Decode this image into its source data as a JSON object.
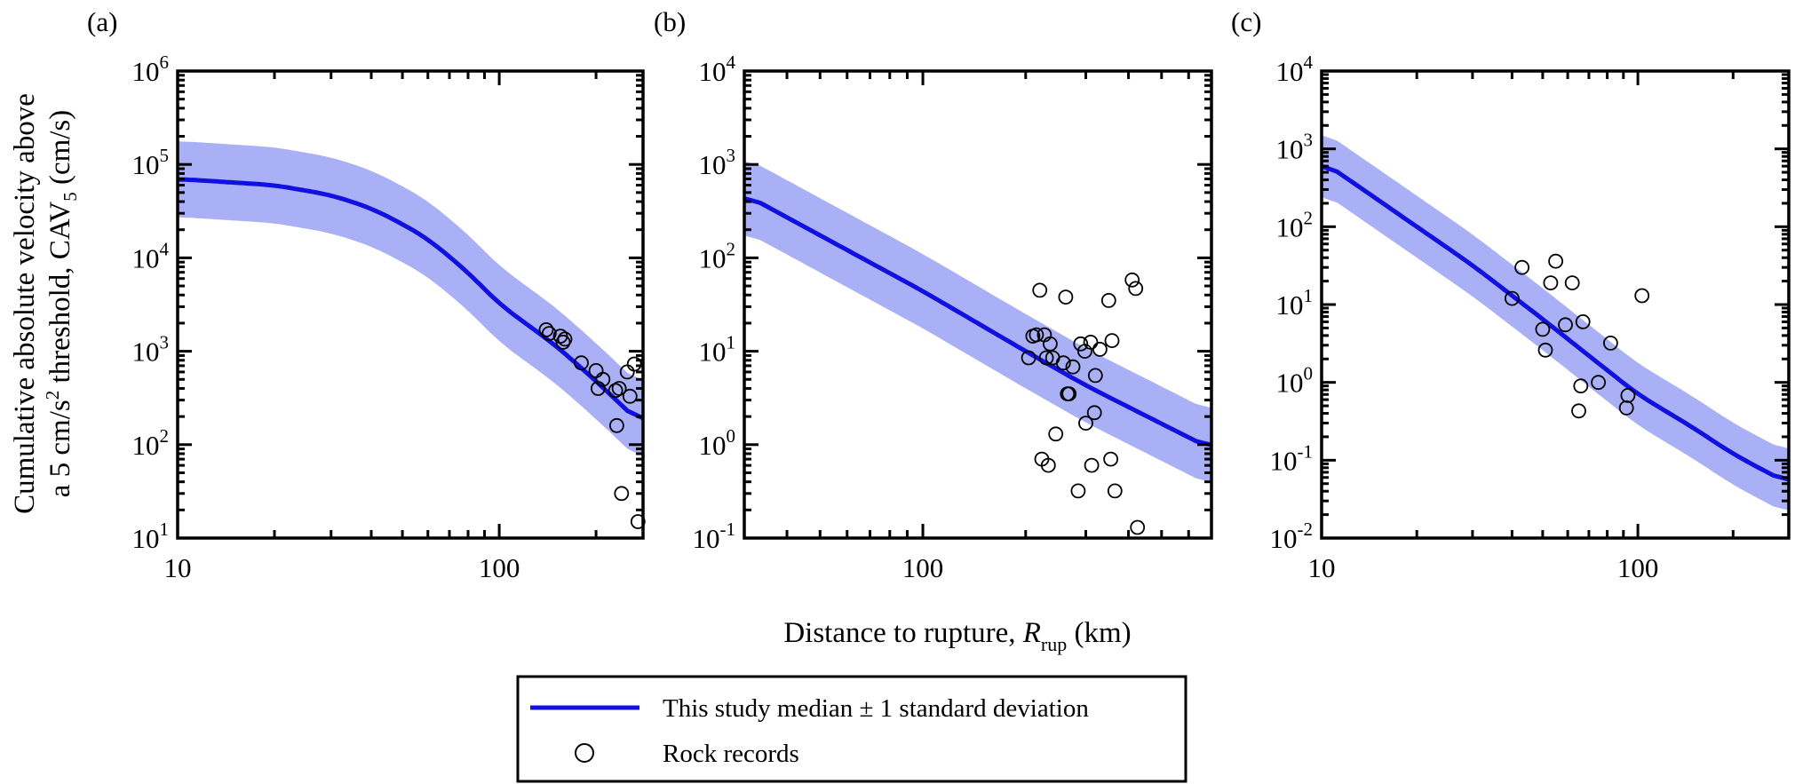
{
  "figure": {
    "ylabel_line1": "Cumulative absolute velocity above",
    "ylabel_line2_pre": "a 5 cm/s",
    "ylabel_line2_sup": "2",
    "ylabel_line2_mid": " threshold, CAV",
    "ylabel_line2_sub": "5",
    "ylabel_line2_post": " (cm/s)",
    "xlabel_pre": "Distance to rupture, ",
    "xlabel_var": "R",
    "xlabel_sub": "rup",
    "xlabel_post": " (km)"
  },
  "legend": {
    "line_label": "This study median ± 1 standard deviation",
    "marker_label": "Rock records",
    "line_color": "#1010e0",
    "band_color": "#aab0f5"
  },
  "chart_data": [
    {
      "type": "line",
      "panel_label": "(a)",
      "xscale": "log",
      "yscale": "log",
      "xlim": [
        10,
        280
      ],
      "ylim": [
        10,
        1000000
      ],
      "xticks": [
        {
          "v": 10,
          "label": "10"
        },
        {
          "v": 100,
          "label": "100"
        }
      ],
      "yticks": [
        {
          "v": 10,
          "base": "10",
          "exp": "1"
        },
        {
          "v": 100,
          "base": "10",
          "exp": "2"
        },
        {
          "v": 1000,
          "base": "10",
          "exp": "3"
        },
        {
          "v": 10000,
          "base": "10",
          "exp": "4"
        },
        {
          "v": 100000,
          "base": "10",
          "exp": "5"
        },
        {
          "v": 1000000,
          "base": "10",
          "exp": "6"
        }
      ],
      "series": [
        {
          "name": "This study median ± 1 standard deviation",
          "x": [
            10,
            20,
            30,
            40,
            50,
            60,
            80,
            100,
            150,
            200,
            280
          ],
          "y": [
            70000,
            60000,
            47000,
            34000,
            23000,
            16000,
            7000,
            3200,
            1150,
            480,
            160
          ],
          "band_factor": 2.55
        },
        {
          "name": "Rock records",
          "x": [
            140,
            143,
            155,
            158,
            160,
            180,
            200,
            203,
            210,
            230,
            232,
            236,
            240,
            250,
            255,
            263,
            270
          ],
          "y": [
            1700,
            1550,
            1450,
            1250,
            1350,
            750,
            620,
            400,
            500,
            380,
            160,
            400,
            30,
            600,
            330,
            730,
            15
          ]
        }
      ]
    },
    {
      "type": "line",
      "panel_label": "(b)",
      "xscale": "log",
      "yscale": "log",
      "xlim": [
        30,
        700
      ],
      "ylim": [
        0.1,
        10000
      ],
      "xticks": [
        {
          "v": 100,
          "label": "100"
        }
      ],
      "yticks": [
        {
          "v": 0.1,
          "base": "10",
          "exp": "-1"
        },
        {
          "v": 1,
          "base": "10",
          "exp": "0"
        },
        {
          "v": 10,
          "base": "10",
          "exp": "1"
        },
        {
          "v": 100,
          "base": "10",
          "exp": "2"
        },
        {
          "v": 1000,
          "base": "10",
          "exp": "3"
        },
        {
          "v": 10000,
          "base": "10",
          "exp": "4"
        }
      ],
      "series": [
        {
          "name": "This study median ± 1 standard deviation",
          "x": [
            30,
            100,
            200,
            300,
            700
          ],
          "y": [
            480,
            44,
            10,
            4.3,
            0.9
          ],
          "band_factor": 2.5
        },
        {
          "name": "Rock records",
          "x": [
            204,
            210,
            215,
            220,
            223,
            227,
            230,
            233,
            236,
            240,
            245,
            258,
            262,
            265,
            268,
            275,
            285,
            290,
            298,
            300,
            310,
            312,
            318,
            320,
            330,
            350,
            355,
            358,
            365,
            410,
            420,
            425
          ],
          "y": [
            8.5,
            14.5,
            15,
            45,
            0.7,
            15,
            8.5,
            0.6,
            12,
            8.5,
            1.3,
            7.5,
            38,
            3.5,
            3.5,
            6.8,
            0.32,
            12,
            10,
            1.7,
            12.5,
            0.6,
            2.2,
            5.5,
            10.5,
            35,
            0.7,
            13,
            0.32,
            58,
            47,
            0.13
          ]
        }
      ]
    },
    {
      "type": "line",
      "panel_label": "(c)",
      "xscale": "log",
      "yscale": "log",
      "xlim": [
        10,
        300
      ],
      "ylim": [
        0.01,
        10000
      ],
      "xticks": [
        {
          "v": 10,
          "label": "10"
        },
        {
          "v": 100,
          "label": "100"
        }
      ],
      "yticks": [
        {
          "v": 0.01,
          "base": "10",
          "exp": "-2"
        },
        {
          "v": 0.1,
          "base": "10",
          "exp": "-1"
        },
        {
          "v": 1,
          "base": "10",
          "exp": "0"
        },
        {
          "v": 10,
          "base": "10",
          "exp": "1"
        },
        {
          "v": 100,
          "base": "10",
          "exp": "2"
        },
        {
          "v": 1000,
          "base": "10",
          "exp": "3"
        },
        {
          "v": 10000,
          "base": "10",
          "exp": "4"
        }
      ],
      "series": [
        {
          "name": "This study median ± 1 standard deviation",
          "x": [
            10,
            20,
            30,
            50,
            70,
            100,
            150,
            200,
            300
          ],
          "y": [
            700,
            100,
            32,
            6.5,
            2.2,
            0.7,
            0.26,
            0.12,
            0.05
          ],
          "band_factor": 2.5
        },
        {
          "name": "Rock records",
          "x": [
            40,
            43,
            50,
            51,
            53,
            55,
            59,
            62,
            65,
            66,
            67,
            75,
            82,
            92,
            93,
            103
          ],
          "y": [
            12,
            30,
            4.8,
            2.6,
            19,
            36,
            5.5,
            19,
            0.43,
            0.9,
            6,
            1.0,
            3.2,
            0.47,
            0.68,
            13
          ]
        }
      ]
    }
  ]
}
